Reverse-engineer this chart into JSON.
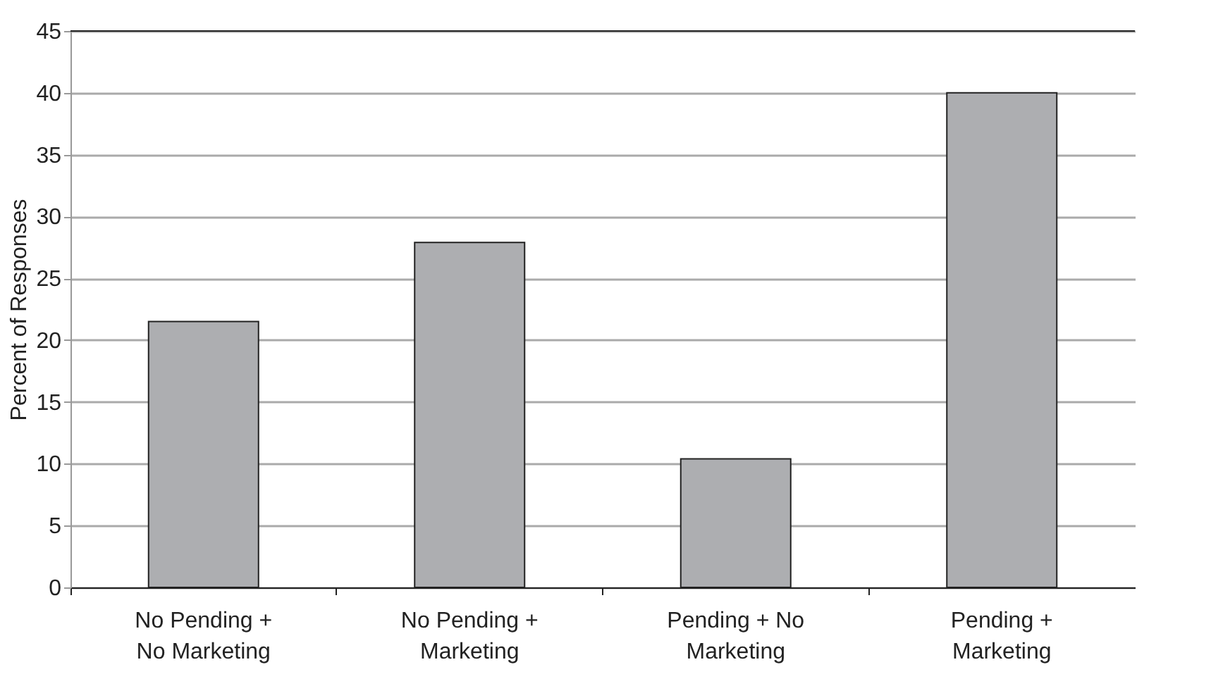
{
  "chart_data": {
    "type": "bar",
    "ylabel": "Percent of Responses",
    "categories": [
      "No Pending + No Marketing",
      "No Pending + Marketing",
      "Pending + No Marketing",
      "Pending + Marketing"
    ],
    "values": [
      21.5,
      27.9,
      10.4,
      40.0
    ],
    "color": "#adaeb1",
    "ylim": [
      0,
      45
    ],
    "yticks": [
      0,
      5,
      10,
      15,
      20,
      25,
      30,
      35,
      40,
      45
    ],
    "grid": "y"
  }
}
